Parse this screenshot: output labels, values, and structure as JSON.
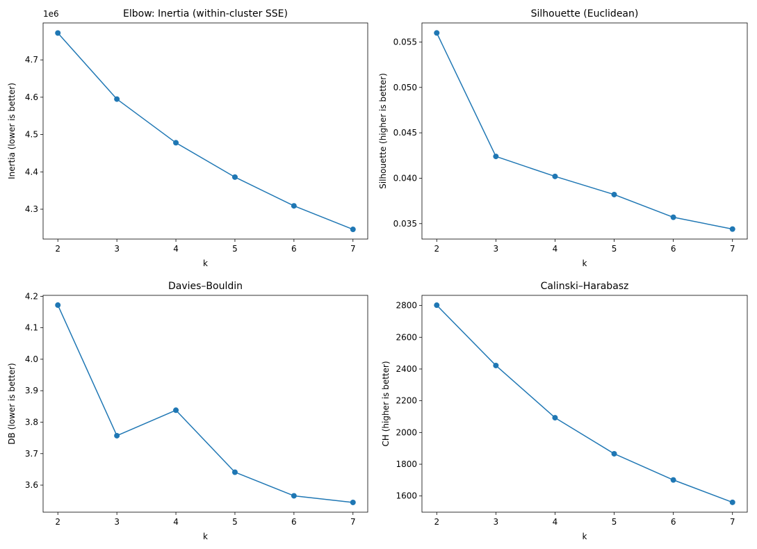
{
  "chart_data": [
    {
      "type": "line",
      "title": "Elbow: Inertia (within-cluster SSE)",
      "xlabel": "k",
      "ylabel": "Inertia (lower is better)",
      "x": [
        2,
        3,
        4,
        5,
        6,
        7
      ],
      "values": [
        4772000,
        4595000,
        4478000,
        4386000,
        4309000,
        4246000
      ],
      "xlim": [
        1.75,
        7.25
      ],
      "ylim": [
        4220000,
        4799000
      ],
      "xticks": [
        2,
        3,
        4,
        5,
        6,
        7
      ],
      "yticks": [
        4300000,
        4400000,
        4500000,
        4600000,
        4700000
      ],
      "ytick_labels": [
        "4.3",
        "4.4",
        "4.5",
        "4.6",
        "4.7"
      ],
      "offset_label": "1e6",
      "color": "#1f77b4",
      "grid": false
    },
    {
      "type": "line",
      "title": "Silhouette (Euclidean)",
      "xlabel": "k",
      "ylabel": "Silhouette (higher is better)",
      "x": [
        2,
        3,
        4,
        5,
        6,
        7
      ],
      "values": [
        0.056,
        0.0424,
        0.0402,
        0.0382,
        0.0357,
        0.0344
      ],
      "xlim": [
        1.75,
        7.25
      ],
      "ylim": [
        0.0333,
        0.0571
      ],
      "xticks": [
        2,
        3,
        4,
        5,
        6,
        7
      ],
      "yticks": [
        0.035,
        0.04,
        0.045,
        0.05,
        0.055
      ],
      "ytick_labels": [
        "0.035",
        "0.040",
        "0.045",
        "0.050",
        "0.055"
      ],
      "color": "#1f77b4",
      "grid": false
    },
    {
      "type": "line",
      "title": "Davies–Bouldin",
      "xlabel": "k",
      "ylabel": "DB (lower is better)",
      "x": [
        2,
        3,
        4,
        5,
        6,
        7
      ],
      "values": [
        4.172,
        3.757,
        3.838,
        3.641,
        3.566,
        3.545
      ],
      "xlim": [
        1.75,
        7.25
      ],
      "ylim": [
        3.514,
        4.203
      ],
      "xticks": [
        2,
        3,
        4,
        5,
        6,
        7
      ],
      "yticks": [
        3.6,
        3.7,
        3.8,
        3.9,
        4.0,
        4.1,
        4.2
      ],
      "ytick_labels": [
        "3.6",
        "3.7",
        "3.8",
        "3.9",
        "4.0",
        "4.1",
        "4.2"
      ],
      "color": "#1f77b4",
      "grid": false
    },
    {
      "type": "line",
      "title": "Calinski–Harabasz",
      "xlabel": "k",
      "ylabel": "CH (higher is better)",
      "x": [
        2,
        3,
        4,
        5,
        6,
        7
      ],
      "values": [
        2802,
        2422,
        2093,
        1866,
        1701,
        1560
      ],
      "xlim": [
        1.75,
        7.25
      ],
      "ylim": [
        1498,
        2864
      ],
      "xticks": [
        2,
        3,
        4,
        5,
        6,
        7
      ],
      "yticks": [
        1600,
        1800,
        2000,
        2200,
        2400,
        2600,
        2800
      ],
      "ytick_labels": [
        "1600",
        "1800",
        "2000",
        "2200",
        "2400",
        "2600",
        "2800"
      ],
      "color": "#1f77b4",
      "grid": false
    }
  ]
}
